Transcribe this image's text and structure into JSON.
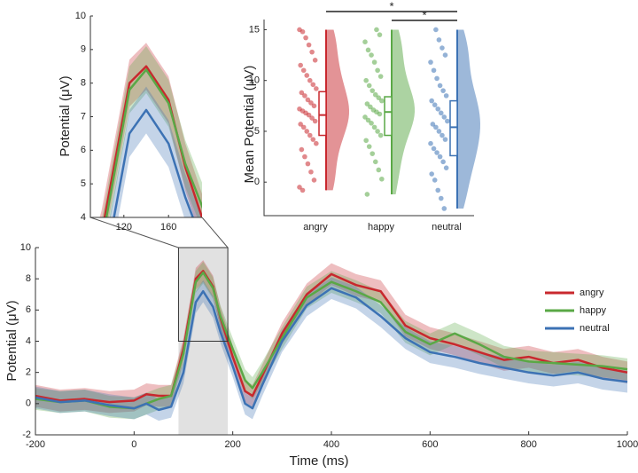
{
  "chart_data": [
    {
      "type": "line",
      "x_label": "Time (ms)",
      "y_label": "Potential (μV)",
      "xlim": [
        -200,
        1000
      ],
      "ylim": [
        -2,
        10
      ],
      "xticks": [
        -200,
        0,
        200,
        400,
        600,
        800,
        1000
      ],
      "yticks": [
        -2,
        0,
        2,
        4,
        6,
        8,
        10
      ],
      "shaded_window": [
        90,
        190
      ],
      "legend": "right",
      "x": [
        -200,
        -150,
        -100,
        -50,
        0,
        25,
        50,
        75,
        100,
        125,
        140,
        160,
        175,
        200,
        225,
        240,
        260,
        300,
        350,
        400,
        450,
        500,
        550,
        600,
        650,
        700,
        750,
        800,
        850,
        900,
        950,
        1000
      ],
      "series": [
        {
          "name": "angry",
          "color": "#c8282e",
          "error": 0.7,
          "values": [
            0.5,
            0.2,
            0.3,
            0.1,
            0.2,
            0.6,
            0.5,
            0.5,
            3.5,
            8.0,
            8.5,
            7.5,
            5.5,
            3.0,
            0.8,
            0.5,
            1.8,
            4.5,
            7.0,
            8.3,
            7.6,
            7.2,
            5.0,
            4.2,
            3.8,
            3.3,
            2.8,
            3.0,
            2.6,
            2.8,
            2.3,
            2.0
          ]
        },
        {
          "name": "happy",
          "color": "#5aa846",
          "error": 0.7,
          "values": [
            0.3,
            0.1,
            0.2,
            -0.2,
            -0.3,
            0.0,
            0.3,
            0.5,
            3.2,
            7.8,
            8.4,
            7.4,
            5.6,
            3.5,
            1.5,
            1.0,
            2.0,
            4.2,
            6.8,
            7.8,
            7.2,
            6.5,
            4.6,
            3.8,
            4.5,
            3.8,
            3.0,
            2.7,
            2.6,
            2.5,
            2.4,
            2.2
          ]
        },
        {
          "name": "neutral",
          "color": "#3c72b4",
          "error": 0.7,
          "values": [
            0.4,
            0.1,
            0.2,
            -0.1,
            -0.3,
            0.0,
            -0.4,
            -0.2,
            2.0,
            6.5,
            7.2,
            6.2,
            4.6,
            2.4,
            0.0,
            -0.3,
            1.2,
            4.0,
            6.3,
            7.4,
            6.8,
            5.6,
            4.2,
            3.3,
            3.0,
            2.6,
            2.3,
            2.0,
            1.8,
            2.0,
            1.6,
            1.4
          ]
        }
      ]
    },
    {
      "type": "zoom",
      "y_label": "Potential (μV)",
      "xlim": [
        90,
        190
      ],
      "ylim": [
        4,
        10
      ],
      "xticks": [
        120,
        160
      ],
      "yticks": [
        4,
        5,
        6,
        7,
        8,
        9,
        10
      ]
    },
    {
      "type": "raincloud",
      "y_label": "Mean Potential (μV)",
      "ylim": [
        -3.3,
        16
      ],
      "yticks": [
        0,
        5,
        10,
        15
      ],
      "categories": [
        "angry",
        "happy",
        "neutral"
      ],
      "colors": [
        "#c8282e",
        "#5aa846",
        "#3c72b4"
      ],
      "median": [
        6.6,
        6.9,
        5.4
      ],
      "q1": [
        4.6,
        4.6,
        2.6
      ],
      "q3": [
        8.9,
        8.4,
        8.0
      ],
      "min": [
        -0.8,
        -1.2,
        -2.6
      ],
      "max": [
        15,
        15,
        15
      ],
      "points": [
        [
          15,
          14.8,
          14.2,
          13.5,
          12.8,
          12,
          11.5,
          11,
          10.5,
          10,
          9.6,
          9.2,
          8.8,
          8.5,
          8.1,
          7.8,
          7.5,
          7.2,
          7,
          6.8,
          6.6,
          6.3,
          6,
          5.7,
          5.4,
          5,
          4.6,
          4.2,
          3.8,
          3.2,
          2.5,
          1.8,
          1,
          0.2,
          -0.5,
          -0.8
        ],
        [
          15,
          14.5,
          13.8,
          13,
          12.5,
          11.8,
          11,
          10.4,
          10,
          9.5,
          9,
          8.6,
          8.3,
          8,
          7.7,
          7.4,
          7.1,
          6.9,
          6.7,
          6.4,
          6.1,
          5.8,
          5.4,
          5,
          4.6,
          4.1,
          3.5,
          2.8,
          2,
          1.2,
          0.3,
          -1.2
        ],
        [
          15,
          14,
          13.2,
          12.5,
          11.8,
          11,
          10.2,
          9.5,
          9,
          8.5,
          8,
          7.6,
          7.2,
          6.8,
          6.4,
          6,
          5.7,
          5.4,
          5,
          4.6,
          4.2,
          3.8,
          3.3,
          2.9,
          2.5,
          2,
          1.4,
          0.8,
          0.2,
          -0.8,
          -1.6,
          -2.6
        ]
      ],
      "annotations": [
        {
          "text": "*",
          "from": 0,
          "to": 2
        },
        {
          "text": "*",
          "from": 1,
          "to": 2
        }
      ]
    }
  ]
}
